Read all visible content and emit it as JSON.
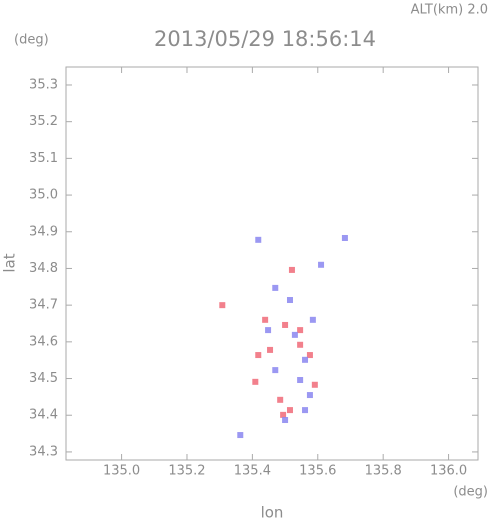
{
  "chart_data": {
    "type": "scatter",
    "title": "2013/05/29 18:56:14",
    "annotation": "ALT(km)  2.0",
    "y_unit": "(deg)",
    "x_unit": "(deg)",
    "xlabel": "lon",
    "ylabel": "lat",
    "xlim": [
      134.83,
      136.09
    ],
    "ylim": [
      34.278,
      35.349
    ],
    "xticks": [
      {
        "value": 135,
        "label": "135.0"
      },
      135.2,
      135.4,
      135.6,
      135.8,
      {
        "value": 136,
        "label": "136.0"
      }
    ],
    "yticks": [
      34.3,
      34.4,
      34.5,
      34.6,
      34.7,
      34.8,
      34.9,
      {
        "value": 35,
        "label": "35.0"
      },
      35.1,
      35.2,
      35.3
    ],
    "series": [
      {
        "color": "#f06a78",
        "x": [
          135.308,
          135.5,
          135.546,
          135.515,
          135.494,
          135.409,
          135.454,
          135.576,
          135.439,
          135.521,
          135.546,
          135.591,
          135.485,
          135.418
        ],
        "y": [
          34.7,
          34.646,
          34.632,
          34.414,
          34.401,
          34.491,
          34.578,
          34.564,
          34.66,
          34.796,
          34.592,
          34.483,
          34.442,
          34.564
        ]
      },
      {
        "color": "#8a86f0",
        "x": [
          135.683,
          135.418,
          135.53,
          135.5,
          135.363,
          135.561,
          135.47,
          135.546,
          135.576,
          135.448,
          135.61,
          135.515,
          135.47,
          135.585,
          135.561
        ],
        "y": [
          34.883,
          34.878,
          34.619,
          34.387,
          34.346,
          34.551,
          34.523,
          34.496,
          34.455,
          34.632,
          34.81,
          34.714,
          34.747,
          34.66,
          34.414
        ]
      }
    ]
  }
}
